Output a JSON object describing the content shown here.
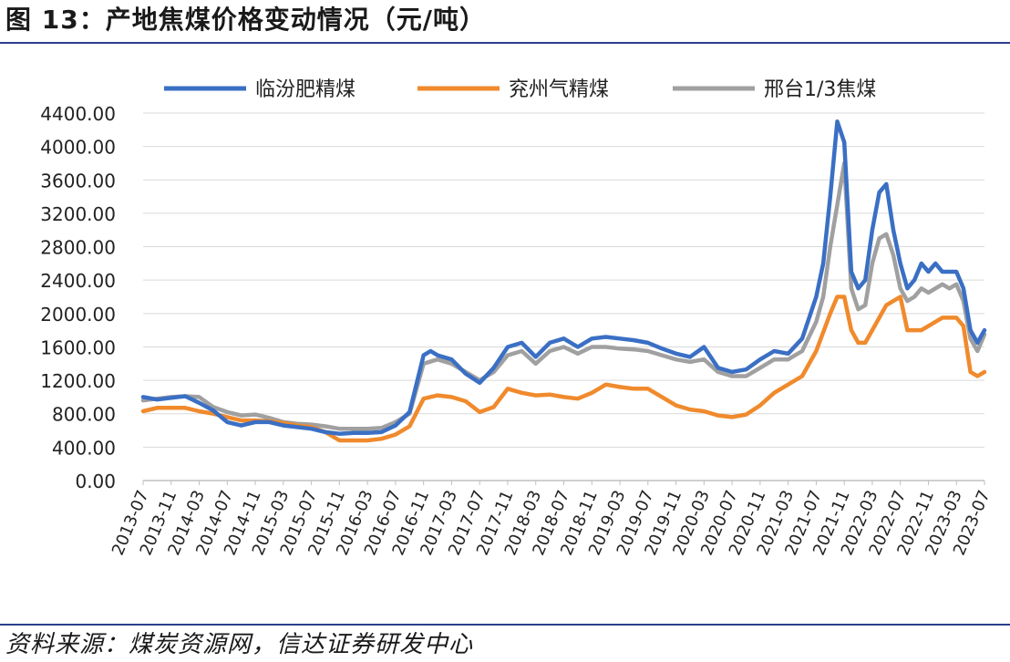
{
  "header": {
    "title": "图 13：产地焦煤价格变动情况（元/吨）"
  },
  "footer": {
    "source": "资料来源：煤炭资源网，信达证券研发中心"
  },
  "colors": {
    "series1": "#3a6fc4",
    "series2": "#f08a2c",
    "series3": "#a0a0a0",
    "grid": "#d9d9d9",
    "axis": "#bfbfbf"
  },
  "chart_data": {
    "type": "line",
    "title": "",
    "xlabel": "",
    "ylabel": "",
    "ylim": [
      0,
      4400
    ],
    "yticks": [
      "0.00",
      "400.00",
      "800.00",
      "1200.00",
      "1600.00",
      "2000.00",
      "2400.00",
      "2800.00",
      "3200.00",
      "3600.00",
      "4000.00",
      "4400.00"
    ],
    "xticks": [
      "2013-07",
      "2013-11",
      "2014-03",
      "2014-07",
      "2014-11",
      "2015-03",
      "2015-07",
      "2015-11",
      "2016-03",
      "2016-07",
      "2016-11",
      "2017-03",
      "2017-07",
      "2017-11",
      "2018-03",
      "2018-07",
      "2018-11",
      "2019-03",
      "2019-07",
      "2019-11",
      "2020-03",
      "2020-07",
      "2020-11",
      "2021-03",
      "2021-07",
      "2021-11",
      "2022-03",
      "2022-07",
      "2022-11",
      "2023-03",
      "2023-07"
    ],
    "grid": true,
    "legend_position": "top",
    "series": [
      {
        "name": "临汾肥精煤",
        "points": [
          [
            "2013-07",
            1000
          ],
          [
            "2013-09",
            970
          ],
          [
            "2013-11",
            990
          ],
          [
            "2014-01",
            1010
          ],
          [
            "2014-03",
            930
          ],
          [
            "2014-05",
            840
          ],
          [
            "2014-07",
            700
          ],
          [
            "2014-09",
            660
          ],
          [
            "2014-11",
            700
          ],
          [
            "2015-01",
            700
          ],
          [
            "2015-03",
            660
          ],
          [
            "2015-05",
            640
          ],
          [
            "2015-07",
            620
          ],
          [
            "2015-09",
            580
          ],
          [
            "2015-11",
            560
          ],
          [
            "2016-01",
            570
          ],
          [
            "2016-03",
            570
          ],
          [
            "2016-05",
            580
          ],
          [
            "2016-07",
            660
          ],
          [
            "2016-09",
            820
          ],
          [
            "2016-11",
            1500
          ],
          [
            "2016-12",
            1550
          ],
          [
            "2017-01",
            1500
          ],
          [
            "2017-03",
            1450
          ],
          [
            "2017-05",
            1280
          ],
          [
            "2017-07",
            1170
          ],
          [
            "2017-09",
            1350
          ],
          [
            "2017-11",
            1600
          ],
          [
            "2018-01",
            1650
          ],
          [
            "2018-03",
            1480
          ],
          [
            "2018-05",
            1650
          ],
          [
            "2018-07",
            1700
          ],
          [
            "2018-09",
            1600
          ],
          [
            "2018-11",
            1700
          ],
          [
            "2019-01",
            1720
          ],
          [
            "2019-03",
            1700
          ],
          [
            "2019-05",
            1680
          ],
          [
            "2019-07",
            1650
          ],
          [
            "2019-09",
            1580
          ],
          [
            "2019-11",
            1520
          ],
          [
            "2020-01",
            1480
          ],
          [
            "2020-03",
            1600
          ],
          [
            "2020-05",
            1350
          ],
          [
            "2020-07",
            1300
          ],
          [
            "2020-09",
            1330
          ],
          [
            "2020-11",
            1450
          ],
          [
            "2021-01",
            1550
          ],
          [
            "2021-03",
            1520
          ],
          [
            "2021-05",
            1700
          ],
          [
            "2021-07",
            2200
          ],
          [
            "2021-08",
            2600
          ],
          [
            "2021-09",
            3400
          ],
          [
            "2021-10",
            4300
          ],
          [
            "2021-11",
            4050
          ],
          [
            "2021-12",
            2500
          ],
          [
            "2022-01",
            2300
          ],
          [
            "2022-02",
            2400
          ],
          [
            "2022-03",
            3000
          ],
          [
            "2022-04",
            3450
          ],
          [
            "2022-05",
            3550
          ],
          [
            "2022-06",
            3000
          ],
          [
            "2022-07",
            2600
          ],
          [
            "2022-08",
            2300
          ],
          [
            "2022-09",
            2400
          ],
          [
            "2022-10",
            2600
          ],
          [
            "2022-11",
            2500
          ],
          [
            "2022-12",
            2600
          ],
          [
            "2023-01",
            2500
          ],
          [
            "2023-02",
            2500
          ],
          [
            "2023-03",
            2500
          ],
          [
            "2023-04",
            2300
          ],
          [
            "2023-05",
            1800
          ],
          [
            "2023-06",
            1650
          ],
          [
            "2023-07",
            1800
          ]
        ]
      },
      {
        "name": "兖州气精煤",
        "points": [
          [
            "2013-07",
            830
          ],
          [
            "2013-09",
            870
          ],
          [
            "2013-11",
            870
          ],
          [
            "2014-01",
            870
          ],
          [
            "2014-03",
            830
          ],
          [
            "2014-05",
            800
          ],
          [
            "2014-07",
            760
          ],
          [
            "2014-09",
            720
          ],
          [
            "2014-11",
            720
          ],
          [
            "2015-01",
            710
          ],
          [
            "2015-03",
            690
          ],
          [
            "2015-05",
            660
          ],
          [
            "2015-07",
            640
          ],
          [
            "2015-09",
            580
          ],
          [
            "2015-11",
            480
          ],
          [
            "2016-01",
            480
          ],
          [
            "2016-03",
            480
          ],
          [
            "2016-05",
            500
          ],
          [
            "2016-07",
            550
          ],
          [
            "2016-09",
            650
          ],
          [
            "2016-11",
            980
          ],
          [
            "2017-01",
            1020
          ],
          [
            "2017-03",
            1000
          ],
          [
            "2017-05",
            950
          ],
          [
            "2017-07",
            820
          ],
          [
            "2017-09",
            880
          ],
          [
            "2017-11",
            1100
          ],
          [
            "2018-01",
            1050
          ],
          [
            "2018-03",
            1020
          ],
          [
            "2018-05",
            1030
          ],
          [
            "2018-07",
            1000
          ],
          [
            "2018-09",
            980
          ],
          [
            "2018-11",
            1050
          ],
          [
            "2019-01",
            1150
          ],
          [
            "2019-03",
            1120
          ],
          [
            "2019-05",
            1100
          ],
          [
            "2019-07",
            1100
          ],
          [
            "2019-09",
            1000
          ],
          [
            "2019-11",
            900
          ],
          [
            "2020-01",
            850
          ],
          [
            "2020-03",
            830
          ],
          [
            "2020-05",
            780
          ],
          [
            "2020-07",
            760
          ],
          [
            "2020-09",
            790
          ],
          [
            "2020-11",
            900
          ],
          [
            "2021-01",
            1050
          ],
          [
            "2021-03",
            1150
          ],
          [
            "2021-05",
            1250
          ],
          [
            "2021-07",
            1550
          ],
          [
            "2021-09",
            2000
          ],
          [
            "2021-10",
            2200
          ],
          [
            "2021-11",
            2200
          ],
          [
            "2021-12",
            1800
          ],
          [
            "2022-01",
            1650
          ],
          [
            "2022-02",
            1650
          ],
          [
            "2022-03",
            1800
          ],
          [
            "2022-05",
            2100
          ],
          [
            "2022-07",
            2200
          ],
          [
            "2022-08",
            1800
          ],
          [
            "2022-10",
            1800
          ],
          [
            "2022-11",
            1850
          ],
          [
            "2023-01",
            1950
          ],
          [
            "2023-03",
            1950
          ],
          [
            "2023-04",
            1850
          ],
          [
            "2023-05",
            1300
          ],
          [
            "2023-06",
            1250
          ],
          [
            "2023-07",
            1300
          ]
        ]
      },
      {
        "name": "邢台1/3焦煤",
        "points": [
          [
            "2013-07",
            960
          ],
          [
            "2013-09",
            980
          ],
          [
            "2013-11",
            1000
          ],
          [
            "2014-01",
            1010
          ],
          [
            "2014-03",
            1000
          ],
          [
            "2014-05",
            880
          ],
          [
            "2014-07",
            820
          ],
          [
            "2014-09",
            780
          ],
          [
            "2014-11",
            790
          ],
          [
            "2015-01",
            750
          ],
          [
            "2015-03",
            700
          ],
          [
            "2015-05",
            680
          ],
          [
            "2015-07",
            670
          ],
          [
            "2015-09",
            650
          ],
          [
            "2015-11",
            620
          ],
          [
            "2016-01",
            620
          ],
          [
            "2016-03",
            620
          ],
          [
            "2016-05",
            630
          ],
          [
            "2016-07",
            700
          ],
          [
            "2016-09",
            800
          ],
          [
            "2016-11",
            1400
          ],
          [
            "2017-01",
            1450
          ],
          [
            "2017-03",
            1400
          ],
          [
            "2017-05",
            1300
          ],
          [
            "2017-07",
            1200
          ],
          [
            "2017-09",
            1300
          ],
          [
            "2017-11",
            1500
          ],
          [
            "2018-01",
            1550
          ],
          [
            "2018-03",
            1400
          ],
          [
            "2018-05",
            1550
          ],
          [
            "2018-07",
            1600
          ],
          [
            "2018-09",
            1520
          ],
          [
            "2018-11",
            1600
          ],
          [
            "2019-01",
            1600
          ],
          [
            "2019-03",
            1580
          ],
          [
            "2019-05",
            1570
          ],
          [
            "2019-07",
            1550
          ],
          [
            "2019-09",
            1500
          ],
          [
            "2019-11",
            1450
          ],
          [
            "2020-01",
            1420
          ],
          [
            "2020-03",
            1450
          ],
          [
            "2020-05",
            1300
          ],
          [
            "2020-07",
            1250
          ],
          [
            "2020-09",
            1250
          ],
          [
            "2020-11",
            1350
          ],
          [
            "2021-01",
            1450
          ],
          [
            "2021-03",
            1450
          ],
          [
            "2021-05",
            1550
          ],
          [
            "2021-07",
            1900
          ],
          [
            "2021-08",
            2200
          ],
          [
            "2021-09",
            2800
          ],
          [
            "2021-10",
            3300
          ],
          [
            "2021-11",
            3800
          ],
          [
            "2021-12",
            2300
          ],
          [
            "2022-01",
            2050
          ],
          [
            "2022-02",
            2100
          ],
          [
            "2022-03",
            2600
          ],
          [
            "2022-04",
            2900
          ],
          [
            "2022-05",
            2950
          ],
          [
            "2022-06",
            2700
          ],
          [
            "2022-07",
            2300
          ],
          [
            "2022-08",
            2150
          ],
          [
            "2022-09",
            2200
          ],
          [
            "2022-10",
            2300
          ],
          [
            "2022-11",
            2250
          ],
          [
            "2022-12",
            2300
          ],
          [
            "2023-01",
            2350
          ],
          [
            "2023-02",
            2300
          ],
          [
            "2023-03",
            2350
          ],
          [
            "2023-04",
            2150
          ],
          [
            "2023-05",
            1700
          ],
          [
            "2023-06",
            1550
          ],
          [
            "2023-07",
            1750
          ]
        ]
      }
    ]
  }
}
